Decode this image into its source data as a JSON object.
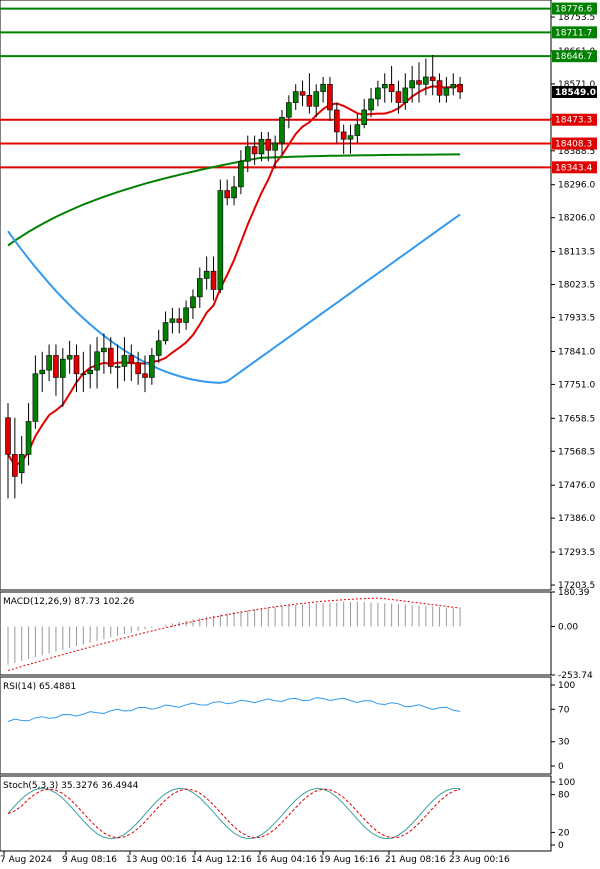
{
  "chart_data": [
    {
      "type": "candlestick",
      "panel": "price",
      "y_ticks": [
        "18753.5",
        "18661.0",
        "18571.0",
        "18476.0",
        "18388.5",
        "18296.0",
        "18206.0",
        "18113.5",
        "18023.5",
        "17933.5",
        "17841.0",
        "17751.0",
        "17658.5",
        "17568.5",
        "17476.0",
        "17386.0",
        "17293.5",
        "17203.5"
      ],
      "ylim": [
        17190,
        18800
      ],
      "current_price": "18549.0",
      "levels": [
        {
          "value": 18776.6,
          "label": "18776.6",
          "color": "#008000"
        },
        {
          "value": 18711.7,
          "label": "18711.7",
          "color": "#008000"
        },
        {
          "value": 18646.7,
          "label": "18646.7",
          "color": "#008000"
        },
        {
          "value": 18473.3,
          "label": "18473.3",
          "color": "#e00000"
        },
        {
          "value": 18408.3,
          "label": "18408.3",
          "color": "#e00000"
        },
        {
          "value": 18343.4,
          "label": "18343.4",
          "color": "#e00000"
        }
      ],
      "candles": [
        [
          17660,
          17560,
          17700,
          17440
        ],
        [
          17560,
          17500,
          17660,
          17440
        ],
        [
          17510,
          17560,
          17610,
          17480
        ],
        [
          17560,
          17650,
          17700,
          17530
        ],
        [
          17650,
          17780,
          17830,
          17630
        ],
        [
          17780,
          17790,
          17840,
          17730
        ],
        [
          17790,
          17830,
          17860,
          17760
        ],
        [
          17830,
          17770,
          17860,
          17720
        ],
        [
          17770,
          17820,
          17850,
          17690
        ],
        [
          17820,
          17830,
          17870,
          17780
        ],
        [
          17830,
          17780,
          17860,
          17730
        ],
        [
          17780,
          17780,
          17840,
          17730
        ],
        [
          17780,
          17790,
          17860,
          17740
        ],
        [
          17790,
          17840,
          17880,
          17740
        ],
        [
          17840,
          17850,
          17890,
          17780
        ],
        [
          17850,
          17800,
          17880,
          17780
        ],
        [
          17800,
          17800,
          17860,
          17740
        ],
        [
          17800,
          17830,
          17880,
          17760
        ],
        [
          17830,
          17810,
          17860,
          17760
        ],
        [
          17810,
          17780,
          17840,
          17750
        ],
        [
          17780,
          17770,
          17830,
          17730
        ],
        [
          17770,
          17830,
          17850,
          17750
        ],
        [
          17830,
          17870,
          17900,
          17810
        ],
        [
          17870,
          17920,
          17950,
          17860
        ],
        [
          17920,
          17930,
          17960,
          17890
        ],
        [
          17930,
          17920,
          17960,
          17890
        ],
        [
          17920,
          17960,
          17980,
          17900
        ],
        [
          17960,
          17990,
          18010,
          17930
        ],
        [
          17990,
          18040,
          18070,
          17960
        ],
        [
          18040,
          18060,
          18100,
          18010
        ],
        [
          18060,
          18010,
          18100,
          17980
        ],
        [
          18010,
          18280,
          18310,
          18000
        ],
        [
          18280,
          18260,
          18310,
          18240
        ],
        [
          18260,
          18290,
          18320,
          18240
        ],
        [
          18290,
          18360,
          18390,
          18270
        ],
        [
          18360,
          18400,
          18430,
          18330
        ],
        [
          18400,
          18380,
          18430,
          18350
        ],
        [
          18380,
          18420,
          18440,
          18360
        ],
        [
          18420,
          18390,
          18440,
          18360
        ],
        [
          18390,
          18410,
          18430,
          18340
        ],
        [
          18410,
          18480,
          18500,
          18380
        ],
        [
          18480,
          18520,
          18540,
          18450
        ],
        [
          18520,
          18550,
          18570,
          18500
        ],
        [
          18550,
          18540,
          18580,
          18510
        ],
        [
          18540,
          18510,
          18600,
          18490
        ],
        [
          18510,
          18550,
          18570,
          18480
        ],
        [
          18550,
          18570,
          18590,
          18520
        ],
        [
          18570,
          18500,
          18590,
          18470
        ],
        [
          18500,
          18440,
          18520,
          18410
        ],
        [
          18440,
          18420,
          18460,
          18380
        ],
        [
          18420,
          18430,
          18460,
          18380
        ],
        [
          18430,
          18460,
          18490,
          18410
        ],
        [
          18460,
          18500,
          18530,
          18450
        ],
        [
          18500,
          18530,
          18560,
          18480
        ],
        [
          18530,
          18560,
          18580,
          18510
        ],
        [
          18560,
          18570,
          18600,
          18520
        ],
        [
          18570,
          18550,
          18620,
          18520
        ],
        [
          18550,
          18520,
          18580,
          18490
        ],
        [
          18520,
          18560,
          18600,
          18500
        ],
        [
          18560,
          18580,
          18620,
          18520
        ],
        [
          18580,
          18570,
          18630,
          18520
        ],
        [
          18570,
          18590,
          18640,
          18540
        ],
        [
          18590,
          18580,
          18650,
          18540
        ],
        [
          18580,
          18540,
          18600,
          18520
        ],
        [
          18540,
          18560,
          18590,
          18520
        ],
        [
          18560,
          18570,
          18600,
          18540
        ],
        [
          18570,
          18549,
          18590,
          18530
        ]
      ],
      "ma_fast_color": "#e00000",
      "ma_mid_color": "#008000",
      "ma_slow_color": "#3399ee"
    },
    {
      "type": "histogram",
      "panel": "macd",
      "label": "MACD(12,26,9) 87.73 102.26",
      "y_ticks": [
        "180.39",
        "0.00",
        "-253.74"
      ]
    },
    {
      "type": "line",
      "panel": "rsi",
      "label": "RSI(14) 65.4881",
      "y_ticks": [
        "100",
        "70",
        "30",
        "0"
      ]
    },
    {
      "type": "line",
      "panel": "stoch",
      "label": "Stoch(5,3,3) 35.3276 36.4944",
      "y_ticks": [
        "100",
        "80",
        "20",
        "0"
      ]
    }
  ],
  "x_axis_labels": [
    "7 Aug 2024",
    "9 Aug 08:16",
    "13 Aug 00:16",
    "14 Aug 12:16",
    "16 Aug 04:16",
    "19 Aug 16:16",
    "21 Aug 08:16",
    "23 Aug 00:16"
  ]
}
